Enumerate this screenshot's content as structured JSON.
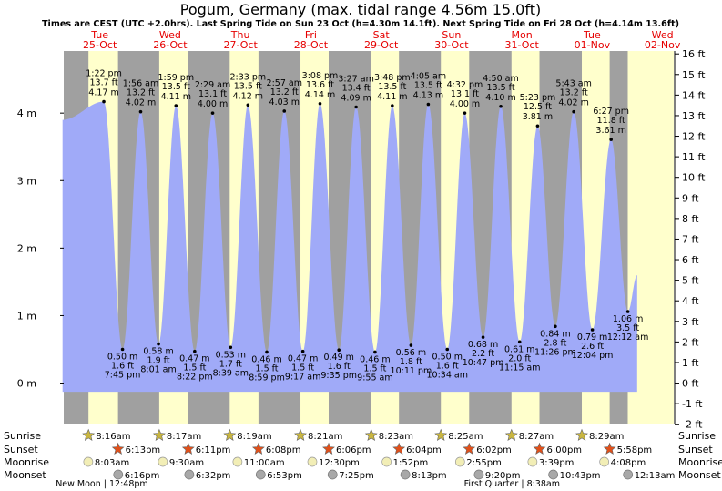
{
  "chart_data": {
    "type": "area",
    "title": "Pogum, Germany (max. tidal range 4.56m 15.0ft)",
    "subtitle": "Times are CEST (UTC +2.0hrs). Last Spring Tide on Sun 23 Oct (h=4.30m 14.1ft). Next Spring Tide on Fri 28 Oct (h=4.14m 13.6ft)",
    "ylabel_left_unit": "m",
    "ylim_m": [
      -0.6,
      4.92
    ],
    "ylim_ft": [
      -2,
      16
    ],
    "y_ticks_m": [
      "0 m",
      "1 m",
      "2 m",
      "3 m",
      "4 m"
    ],
    "y_ticks_ft": [
      "-2 ft",
      "-1 ft",
      "0 ft",
      "1 ft",
      "2 ft",
      "3 ft",
      "4 ft",
      "5 ft",
      "6 ft",
      "7 ft",
      "8 ft",
      "9 ft",
      "10 ft",
      "11 ft",
      "12 ft",
      "13 ft",
      "14 ft",
      "15 ft",
      "16 ft"
    ],
    "days": [
      {
        "dow": "Tue",
        "date": "25-Oct"
      },
      {
        "dow": "Wed",
        "date": "26-Oct"
      },
      {
        "dow": "Thu",
        "date": "27-Oct"
      },
      {
        "dow": "Fri",
        "date": "28-Oct"
      },
      {
        "dow": "Sat",
        "date": "29-Oct"
      },
      {
        "dow": "Sun",
        "date": "30-Oct"
      },
      {
        "dow": "Mon",
        "date": "31-Oct"
      },
      {
        "dow": "Tue",
        "date": "01-Nov"
      },
      {
        "dow": "Wed",
        "date": "02-Nov"
      }
    ],
    "high_tides": [
      {
        "time": "1:22 pm",
        "ft": "13.7 ft",
        "m": "4.17 m",
        "day": 0.557,
        "h": 4.17
      },
      {
        "time": "1:56 am",
        "ft": "13.2 ft",
        "m": "4.02 m",
        "day": 1.081,
        "h": 4.02
      },
      {
        "time": "1:59 pm",
        "ft": "13.5 ft",
        "m": "4.11 m",
        "day": 1.583,
        "h": 4.11
      },
      {
        "time": "2:29 am",
        "ft": "13.1 ft",
        "m": "4.00 m",
        "day": 2.104,
        "h": 4.0
      },
      {
        "time": "2:33 pm",
        "ft": "13.5 ft",
        "m": "4.12 m",
        "day": 2.606,
        "h": 4.12
      },
      {
        "time": "2:57 am",
        "ft": "13.2 ft",
        "m": "4.03 m",
        "day": 3.123,
        "h": 4.03
      },
      {
        "time": "3:08 pm",
        "ft": "13.6 ft",
        "m": "4.14 m",
        "day": 3.631,
        "h": 4.14
      },
      {
        "time": "3:27 am",
        "ft": "13.4 ft",
        "m": "4.09 m",
        "day": 4.144,
        "h": 4.09
      },
      {
        "time": "3:48 pm",
        "ft": "13.5 ft",
        "m": "4.11 m",
        "day": 4.658,
        "h": 4.11
      },
      {
        "time": "4:05 am",
        "ft": "13.5 ft",
        "m": "4.13 m",
        "day": 5.17,
        "h": 4.13
      },
      {
        "time": "4:32 pm",
        "ft": "13.1 ft",
        "m": "4.00 m",
        "day": 5.689,
        "h": 4.0
      },
      {
        "time": "4:50 am",
        "ft": "13.5 ft",
        "m": "4.10 m",
        "day": 6.201,
        "h": 4.1
      },
      {
        "time": "5:23 pm",
        "ft": "12.5 ft",
        "m": "3.81 m",
        "day": 6.724,
        "h": 3.81
      },
      {
        "time": "5:43 am",
        "ft": "13.2 ft",
        "m": "4.02 m",
        "day": 7.238,
        "h": 4.02
      },
      {
        "time": "6:27 pm",
        "ft": "11.8 ft",
        "m": "3.61 m",
        "day": 7.769,
        "h": 3.61
      }
    ],
    "low_tides": [
      {
        "time": "7:45 pm",
        "ft": "1.6 ft",
        "m": "0.50 m",
        "day": 0.823,
        "h": 0.5
      },
      {
        "time": "8:01 am",
        "ft": "1.9 ft",
        "m": "0.58 m",
        "day": 1.334,
        "h": 0.58
      },
      {
        "time": "8:22 pm",
        "ft": "1.5 ft",
        "m": "0.47 m",
        "day": 1.849,
        "h": 0.47
      },
      {
        "time": "8:39 am",
        "ft": "1.7 ft",
        "m": "0.53 m",
        "day": 2.36,
        "h": 0.53
      },
      {
        "time": "8:59 pm",
        "ft": "1.5 ft",
        "m": "0.46 m",
        "day": 2.874,
        "h": 0.46
      },
      {
        "time": "9:17 am",
        "ft": "1.5 ft",
        "m": "0.47 m",
        "day": 3.387,
        "h": 0.47
      },
      {
        "time": "9:35 pm",
        "ft": "1.6 ft",
        "m": "0.49 m",
        "day": 3.899,
        "h": 0.49
      },
      {
        "time": "9:55 am",
        "ft": "1.5 ft",
        "m": "0.46 m",
        "day": 4.413,
        "h": 0.46
      },
      {
        "time": "10:11 pm",
        "ft": "1.8 ft",
        "m": "0.56 m",
        "day": 4.924,
        "h": 0.56
      },
      {
        "time": "10:34 am",
        "ft": "1.6 ft",
        "m": "0.50 m",
        "day": 5.44,
        "h": 0.5
      },
      {
        "time": "10:47 pm",
        "ft": "2.2 ft",
        "m": "0.68 m",
        "day": 5.949,
        "h": 0.68
      },
      {
        "time": "11:15 am",
        "ft": "2.0 ft",
        "m": "0.61 m",
        "day": 6.469,
        "h": 0.61
      },
      {
        "time": "11:26 pm",
        "ft": "2.8 ft",
        "m": "0.84 m",
        "day": 6.976,
        "h": 0.84
      },
      {
        "time": "12:04 pm",
        "ft": "2.6 ft",
        "m": "0.79 m",
        "day": 7.503,
        "h": 0.79
      },
      {
        "time": "12:12 am",
        "ft": "3.5 ft",
        "m": "1.06 m",
        "day": 8.008,
        "h": 1.06
      }
    ],
    "curve_start": {
      "day": -0.03,
      "h": 3.9
    },
    "curve_end": {
      "day": 8.14,
      "h": 1.6
    },
    "daylight": [
      {
        "rise": 0.339,
        "set": 0.759
      },
      {
        "rise": 1.345,
        "set": 1.758
      },
      {
        "rise": 2.347,
        "set": 2.756
      },
      {
        "rise": 3.353,
        "set": 3.754
      },
      {
        "rise": 4.359,
        "set": 4.753
      },
      {
        "rise": 5.349,
        "set": 5.751
      },
      {
        "rise": 6.353,
        "set": 6.751
      },
      {
        "rise": 7.353,
        "set": 7.749
      }
    ],
    "sunrise": [
      "8:16am",
      "8:17am",
      "8:19am",
      "8:21am",
      "8:23am",
      "8:25am",
      "8:27am",
      "8:29am"
    ],
    "sunset": [
      "6:13pm",
      "6:11pm",
      "6:08pm",
      "6:06pm",
      "6:04pm",
      "6:02pm",
      "6:00pm",
      "5:58pm"
    ],
    "moonrise": [
      {
        "time": "8:03am",
        "day": 0.335
      },
      {
        "time": "9:30am",
        "day": 1.396
      },
      {
        "time": "11:00am",
        "day": 2.458
      },
      {
        "time": "12:30pm",
        "day": 3.521
      },
      {
        "time": "1:52pm",
        "day": 4.578
      },
      {
        "time": "2:55pm",
        "day": 5.622
      },
      {
        "time": "3:39pm",
        "day": 6.652
      },
      {
        "time": "4:08pm",
        "day": 7.672
      }
    ],
    "moonset": [
      {
        "time": "6:16pm",
        "day": 0.761
      },
      {
        "time": "6:32pm",
        "day": 1.772
      },
      {
        "time": "6:53pm",
        "day": 2.787
      },
      {
        "time": "7:25pm",
        "day": 3.809
      },
      {
        "time": "8:13pm",
        "day": 4.843
      },
      {
        "time": "9:20pm",
        "day": 5.889
      },
      {
        "time": "10:43pm",
        "day": 6.947
      },
      {
        "time": "12:13am",
        "day": 8.009
      }
    ],
    "row_labels": {
      "sunrise": "Sunrise",
      "sunset": "Sunset",
      "moonrise": "Moonrise",
      "moonset": "Moonset"
    },
    "moon_phases": [
      {
        "text": "New Moon | 12:48pm",
        "day": 0.53
      },
      {
        "text": "First Quarter | 8:38am",
        "day": 6.36
      }
    ],
    "colors": {
      "night": "#a0a0a0",
      "day": "#ffffcc",
      "water": "#a0aaf8",
      "day_label": "#e60000",
      "sun": "#c9b640",
      "sunset": "#e0501a",
      "moonrise": "#f2eeb6",
      "moonset": "#a8a8a8"
    }
  }
}
